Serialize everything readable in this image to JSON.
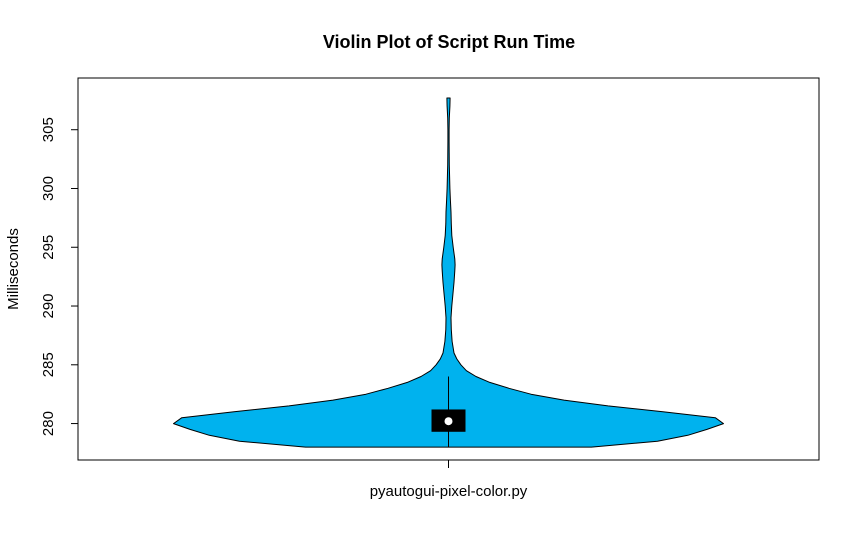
{
  "chart_data": {
    "type": "violin",
    "title": "Violin Plot of Script Run Time",
    "xlabel": "",
    "ylabel": "Milliseconds",
    "categories": [
      "pyautogui-pixel-color.py"
    ],
    "yticks": [
      280,
      285,
      290,
      295,
      300,
      305
    ],
    "ylim": [
      276.9,
      309.4
    ],
    "grid": false,
    "colors": {
      "violin_fill": "#00b2ee",
      "box_fill": "#000000",
      "median_dot": "#ffffff",
      "outline": "#000000"
    },
    "series": [
      {
        "category": "pyautogui-pixel-color.py",
        "min": 278.0,
        "max": 307.7,
        "q1": 279.3,
        "median": 280.2,
        "q3": 281.2,
        "whisker_low": 278.0,
        "whisker_high": 284.0,
        "density": [
          [
            278.0,
            0.52
          ],
          [
            278.5,
            0.76
          ],
          [
            279.0,
            0.87
          ],
          [
            279.5,
            0.94
          ],
          [
            280.0,
            1.0
          ],
          [
            280.5,
            0.97
          ],
          [
            281.0,
            0.78
          ],
          [
            281.5,
            0.58
          ],
          [
            282.0,
            0.42
          ],
          [
            282.5,
            0.3
          ],
          [
            283.0,
            0.22
          ],
          [
            283.5,
            0.15
          ],
          [
            284.0,
            0.1
          ],
          [
            284.5,
            0.065
          ],
          [
            285.0,
            0.045
          ],
          [
            285.5,
            0.03
          ],
          [
            286.0,
            0.02
          ],
          [
            287.0,
            0.013
          ],
          [
            288.0,
            0.01
          ],
          [
            289.0,
            0.009
          ],
          [
            290.0,
            0.012
          ],
          [
            291.0,
            0.016
          ],
          [
            292.0,
            0.02
          ],
          [
            293.0,
            0.023
          ],
          [
            293.5,
            0.024
          ],
          [
            294.0,
            0.023
          ],
          [
            295.0,
            0.017
          ],
          [
            296.0,
            0.012
          ],
          [
            297.0,
            0.01
          ],
          [
            298.0,
            0.009
          ],
          [
            299.0,
            0.007
          ],
          [
            300.0,
            0.005
          ],
          [
            301.0,
            0.004
          ],
          [
            302.0,
            0.003
          ],
          [
            303.0,
            0.0025
          ],
          [
            304.0,
            0.002
          ],
          [
            305.0,
            0.002
          ],
          [
            306.0,
            0.003
          ],
          [
            307.0,
            0.005
          ],
          [
            307.7,
            0.006
          ]
        ]
      }
    ]
  }
}
